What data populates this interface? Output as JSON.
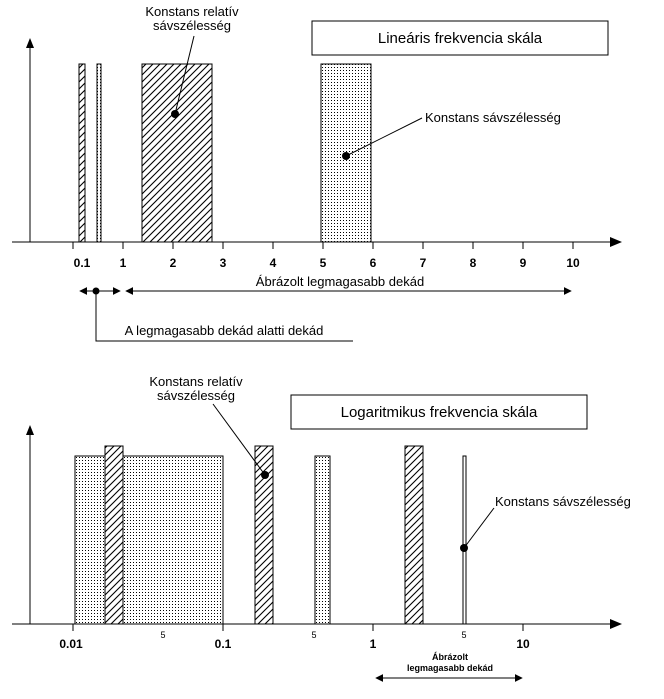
{
  "top": {
    "title": "Lineáris frekvencia skála",
    "tick_labels": [
      "0.1",
      "1",
      "2",
      "3",
      "4",
      "5",
      "6",
      "7",
      "8",
      "9",
      "10"
    ],
    "callout_relative_line1": "Konstans relatív",
    "callout_relative_line2": "sávszélesség",
    "callout_constant": "Konstans sávszélesség",
    "highest_decade": "Ábrázolt legmagasabb dekád",
    "below_decade": "A legmagasabb dekád alatti dekád"
  },
  "bottom": {
    "title": "Logaritmikus frekvencia skála",
    "tick_labels": [
      "0.01",
      "0.1",
      "1",
      "10"
    ],
    "minor_labels": [
      "5",
      "5",
      "5"
    ],
    "callout_relative_line1": "Konstans relatív",
    "callout_relative_line2": "sávszélesség",
    "callout_constant": "Konstans sávszélesség",
    "highest_decade_line1": "Ábrázolt",
    "highest_decade_line2": "legmagasabb dekád"
  }
}
